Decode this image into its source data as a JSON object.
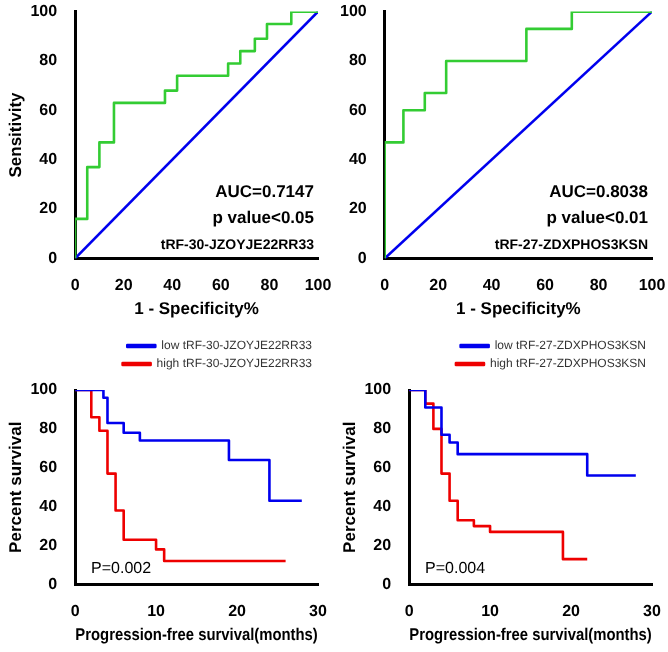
{
  "chart_data": [
    {
      "type": "step",
      "xlabel": "1 - Specificity%",
      "ylabel": "Sensitivity",
      "xlim": [
        0,
        100
      ],
      "ylim": [
        0,
        100
      ],
      "xticks": [
        0,
        20,
        40,
        60,
        80,
        100
      ],
      "yticks": [
        0,
        20,
        40,
        60,
        80,
        100
      ],
      "grid": false,
      "legend": false,
      "marker": "none",
      "annotations": [
        "AUC=0.7147",
        "p value<0.05",
        "tRF-30-JZOYJE22RR33"
      ],
      "series": [
        {
          "color": "#33cc33",
          "x": [
            0,
            0,
            5,
            10,
            16,
            37,
            42,
            63,
            68,
            74,
            79,
            89,
            100
          ],
          "values": [
            0,
            16,
            37,
            47,
            63,
            68,
            74,
            79,
            84,
            89,
            95,
            100,
            100
          ]
        },
        {
          "type": "line",
          "color": "#0000ee",
          "x": [
            0,
            100
          ],
          "values": [
            0,
            100
          ]
        }
      ]
    },
    {
      "type": "step",
      "xlabel": "1 - Specificity%",
      "xlim": [
        0,
        100
      ],
      "ylim": [
        0,
        100
      ],
      "xticks": [
        0,
        20,
        40,
        60,
        80,
        100
      ],
      "yticks": [
        0,
        20,
        40,
        60,
        80,
        100
      ],
      "grid": false,
      "legend": false,
      "marker": "none",
      "annotations": [
        "AUC=0.8038",
        "p value<0.01",
        "tRF-27-ZDXPHOS3KSN"
      ],
      "series": [
        {
          "color": "#33cc33",
          "x": [
            0,
            0,
            7,
            15,
            23,
            53,
            70,
            100
          ],
          "values": [
            0,
            47,
            60,
            67,
            80,
            93,
            100,
            100
          ]
        },
        {
          "type": "line",
          "color": "#0000ee",
          "x": [
            0,
            100
          ],
          "values": [
            0,
            100
          ]
        }
      ]
    },
    {
      "type": "step",
      "xlabel": "Progression-free survival(months)",
      "ylabel": "Percent survival",
      "xlim": [
        0,
        30
      ],
      "ylim": [
        0,
        100
      ],
      "xticks": [
        0,
        10,
        20,
        30
      ],
      "yticks": [
        0,
        20,
        40,
        60,
        80,
        100
      ],
      "grid": false,
      "legend": "top",
      "marker": "none",
      "annotations": [
        "P=0.002"
      ],
      "series": [
        {
          "name": "low tRF-30-JZOYJE22RR33",
          "color": "#0000ee",
          "x": [
            0,
            3.5,
            4,
            6,
            8,
            19,
            24,
            28
          ],
          "values": [
            100,
            96,
            83,
            78,
            74,
            64,
            43,
            43
          ]
        },
        {
          "name": "high tRF-30-JZOYJE22RR33",
          "color": "#ee0000",
          "x": [
            0,
            2,
            3,
            4,
            5,
            6,
            10,
            11,
            26
          ],
          "values": [
            100,
            86,
            79,
            57,
            38,
            23,
            18,
            12,
            12
          ]
        }
      ]
    },
    {
      "type": "step",
      "xlabel": "Progression-free survival(months)",
      "ylabel": "Percent survival",
      "xlim": [
        0,
        30
      ],
      "ylim": [
        0,
        100
      ],
      "xticks": [
        0,
        10,
        20,
        30
      ],
      "yticks": [
        0,
        20,
        40,
        60,
        80,
        100
      ],
      "grid": false,
      "legend": "top",
      "marker": "none",
      "annotations": [
        "P=0.004"
      ],
      "series": [
        {
          "name": "low tRF-27-ZDXPHOS3KSN",
          "color": "#0000ee",
          "x": [
            0,
            2,
            4,
            5,
            6,
            22,
            28
          ],
          "values": [
            100,
            91,
            77,
            73,
            67,
            56,
            56
          ]
        },
        {
          "name": "high tRF-27-ZDXPHOS3KSN",
          "color": "#ee0000",
          "x": [
            0,
            2,
            3,
            4,
            5,
            6,
            8,
            10,
            19,
            22
          ],
          "values": [
            100,
            93,
            80,
            57,
            43,
            33,
            30,
            27,
            13,
            13
          ]
        }
      ]
    }
  ]
}
